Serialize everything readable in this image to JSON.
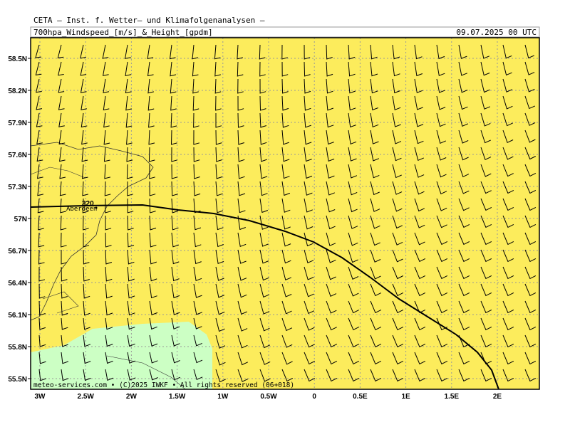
{
  "header": {
    "title": "CETA – Inst. f. Wetter– und Klimafolgenanalysen –",
    "subtitle": "700hpa_Windspeed_[m/s]_&_Height_[gpdm]",
    "date": "09.07.2025 00 UTC"
  },
  "map": {
    "lat_labels": [
      "58.5N",
      "58.2N",
      "57.9N",
      "57.6N",
      "57.3N",
      "57N",
      "56.7N",
      "56.4N",
      "56.1N",
      "55.8N",
      "55.5N"
    ],
    "lon_labels": [
      "3W",
      "2.5W",
      "2W",
      "1.5W",
      "1W",
      "0.5W",
      "0",
      "0.5E",
      "1E",
      "1.5E",
      "2E"
    ],
    "contour_label": "320",
    "city": "Aberdeen"
  },
  "footer": "meteo-services.com • (C)2025 IWKF • All rights reserved (06+018)"
}
